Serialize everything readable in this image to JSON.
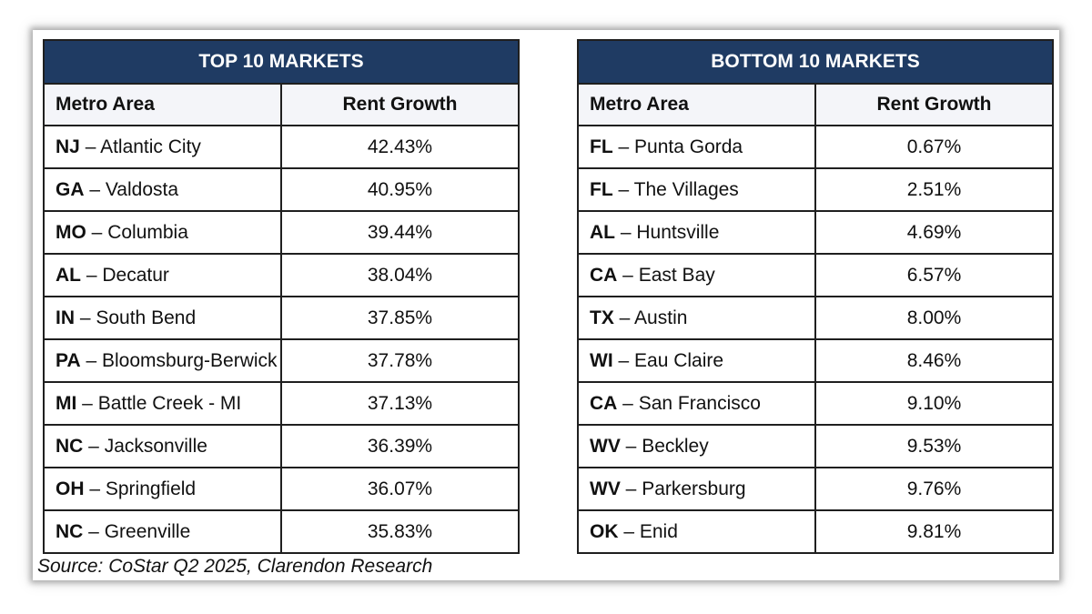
{
  "chart_data": [
    {
      "type": "table",
      "title": "TOP 10 MARKETS",
      "columns": [
        "Metro Area",
        "Rent Growth"
      ],
      "rows": [
        {
          "state": "NJ",
          "city": "Atlantic City",
          "value": "42.43%"
        },
        {
          "state": "GA",
          "city": "Valdosta",
          "value": "40.95%"
        },
        {
          "state": "MO",
          "city": "Columbia",
          "value": "39.44%"
        },
        {
          "state": "AL",
          "city": "Decatur",
          "value": "38.04%"
        },
        {
          "state": "IN",
          "city": "South Bend",
          "value": "37.85%"
        },
        {
          "state": "PA",
          "city": "Bloomsburg-Berwick",
          "value": "37.78%"
        },
        {
          "state": "MI",
          "city": "Battle Creek - MI",
          "value": "37.13%"
        },
        {
          "state": "NC",
          "city": "Jacksonville",
          "value": "36.39%"
        },
        {
          "state": "OH",
          "city": "Springfield",
          "value": "36.07%"
        },
        {
          "state": "NC",
          "city": "Greenville",
          "value": "35.83%"
        }
      ]
    },
    {
      "type": "table",
      "title": "BOTTOM 10 MARKETS",
      "columns": [
        "Metro Area",
        "Rent Growth"
      ],
      "rows": [
        {
          "state": "FL",
          "city": "Punta Gorda",
          "value": "0.67%"
        },
        {
          "state": "FL",
          "city": "The Villages",
          "value": "2.51%"
        },
        {
          "state": "AL",
          "city": "Huntsville",
          "value": "4.69%"
        },
        {
          "state": "CA",
          "city": "East Bay",
          "value": "6.57%"
        },
        {
          "state": "TX",
          "city": "Austin",
          "value": "8.00%"
        },
        {
          "state": "WI",
          "city": "Eau Claire",
          "value": "8.46%"
        },
        {
          "state": "CA",
          "city": "San Francisco",
          "value": "9.10%"
        },
        {
          "state": "WV",
          "city": "Beckley",
          "value": "9.53%"
        },
        {
          "state": "WV",
          "city": "Parkersburg",
          "value": "9.76%"
        },
        {
          "state": "OK",
          "city": "Enid",
          "value": "9.81%"
        }
      ]
    }
  ],
  "source": "Source: CoStar Q2 2025, Clarendon Research",
  "colors": {
    "header_bg": "#1f3b63",
    "subheader_bg": "#f4f5f9",
    "border": "#1f1f1f"
  }
}
